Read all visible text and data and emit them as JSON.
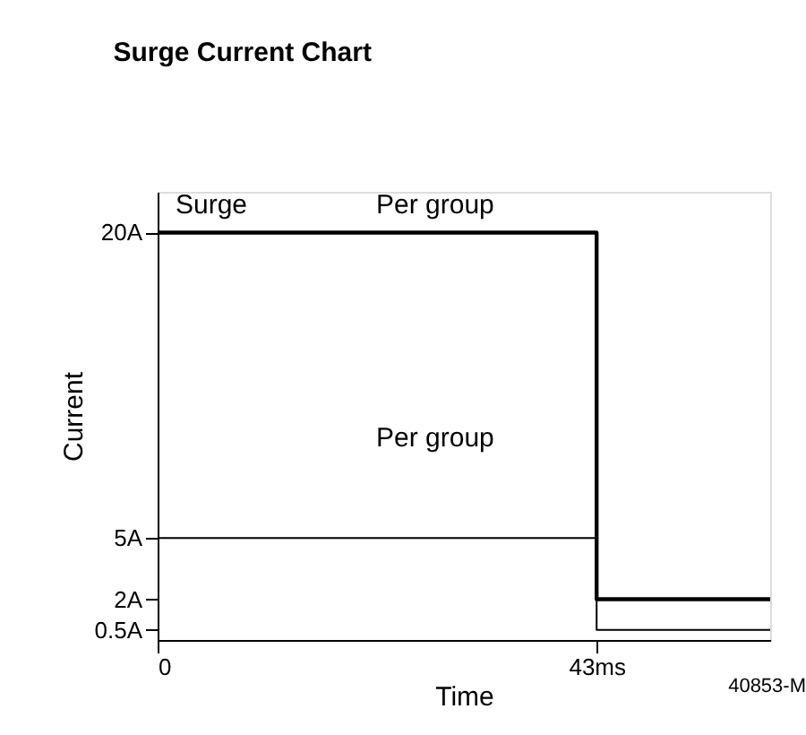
{
  "chart_data": {
    "type": "step",
    "title": "Surge Current Chart",
    "xlabel": "Time",
    "ylabel": "Current",
    "x": [
      0,
      43,
      60
    ],
    "series": [
      {
        "color": "#000000",
        "values": [
          20,
          2,
          2
        ]
      },
      {
        "color": "#000000",
        "values": [
          5,
          0.5,
          0.5
        ]
      }
    ],
    "xlim": [
      0,
      60
    ],
    "xticks": [
      {
        "value": 0,
        "label": "0"
      },
      {
        "value": 43,
        "label": "43ms"
      }
    ],
    "ylim": [
      0,
      22
    ],
    "yticks": [
      {
        "value": 0.5,
        "label": "0.5A"
      },
      {
        "value": 2,
        "label": "2A"
      },
      {
        "value": 5,
        "label": "5A"
      },
      {
        "value": 20,
        "label": "20A"
      }
    ],
    "grid": false,
    "marker": "none",
    "line_style": "solid",
    "annotations": [
      "Surge",
      "Per group",
      "Per group",
      "40853-M"
    ]
  }
}
